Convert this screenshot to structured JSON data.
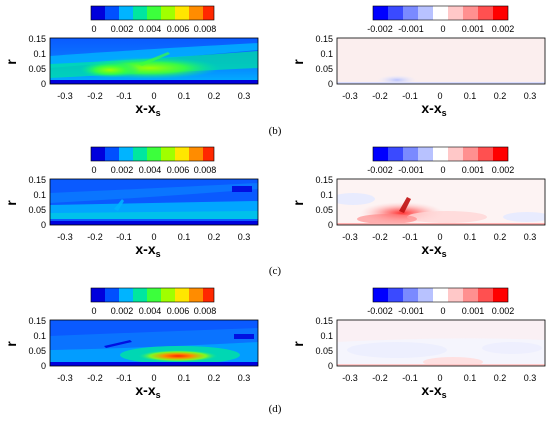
{
  "figure": {
    "rows": [
      {
        "caption": "(b)",
        "left": {
          "colorbar": {
            "ticks": [
              "0",
              "0.002",
              "0.004",
              "0.006",
              "0.008"
            ],
            "range": [
              0,
              0.0088
            ],
            "colors": [
              "#0000dc",
              "#0050ff",
              "#00b4ff",
              "#00e6a0",
              "#3cff3c",
              "#a0ff00",
              "#ffe600",
              "#ff8c00",
              "#ff2800"
            ]
          },
          "xlabel": "x-x",
          "xlabel_sub": "s",
          "ylabel": "r",
          "xticks": [
            "-0.3",
            "-0.2",
            "-0.1",
            "0",
            "0.1",
            "0.2",
            "0.3"
          ],
          "yticks": [
            "0",
            "0.05",
            "0.1",
            "0.15"
          ],
          "xlim": [
            -0.35,
            0.35
          ],
          "ylim": [
            0,
            0.15
          ]
        },
        "right": {
          "colorbar": {
            "ticks": [
              "-0.002",
              "-0.001",
              "0",
              "0.001",
              "0.002"
            ],
            "range": [
              -0.0025,
              0.0025
            ],
            "colors": [
              "#0000ff",
              "#3a4aff",
              "#7a8aff",
              "#b8c2ff",
              "#ffffff",
              "#ffc8c8",
              "#ff9090",
              "#ff5050",
              "#ff0000"
            ]
          },
          "xlabel": "x-x",
          "xlabel_sub": "s",
          "ylabel": "r",
          "xticks": [
            "-0.3",
            "-0.2",
            "-0.1",
            "0",
            "0.1",
            "0.2",
            "0.3"
          ],
          "yticks": [
            "0",
            "0.05",
            "0.1",
            "0.15"
          ],
          "xlim": [
            -0.35,
            0.35
          ],
          "ylim": [
            0,
            0.15
          ]
        }
      },
      {
        "caption": "(c)",
        "left": {
          "colorbar": {
            "ticks": [
              "0",
              "0.002",
              "0.004",
              "0.006",
              "0.008"
            ],
            "range": [
              0,
              0.0088
            ],
            "colors": [
              "#0000dc",
              "#0050ff",
              "#00b4ff",
              "#00e6a0",
              "#3cff3c",
              "#a0ff00",
              "#ffe600",
              "#ff8c00",
              "#ff2800"
            ]
          },
          "xlabel": "x-x",
          "xlabel_sub": "s",
          "ylabel": "r",
          "xticks": [
            "-0.3",
            "-0.2",
            "-0.1",
            "0",
            "0.1",
            "0.2",
            "0.3"
          ],
          "yticks": [
            "0",
            "0.05",
            "0.1",
            "0.15"
          ],
          "xlim": [
            -0.35,
            0.35
          ],
          "ylim": [
            0,
            0.15
          ]
        },
        "right": {
          "colorbar": {
            "ticks": [
              "-0.002",
              "-0.001",
              "0",
              "0.001",
              "0.002"
            ],
            "range": [
              -0.0025,
              0.0025
            ],
            "colors": [
              "#0000ff",
              "#3a4aff",
              "#7a8aff",
              "#b8c2ff",
              "#ffffff",
              "#ffc8c8",
              "#ff9090",
              "#ff5050",
              "#ff0000"
            ]
          },
          "xlabel": "x-x",
          "xlabel_sub": "s",
          "ylabel": "r",
          "xticks": [
            "-0.3",
            "-0.2",
            "-0.1",
            "0",
            "0.1",
            "0.2",
            "0.3"
          ],
          "yticks": [
            "0",
            "0.05",
            "0.1",
            "0.15"
          ],
          "xlim": [
            -0.35,
            0.35
          ],
          "ylim": [
            0,
            0.15
          ]
        }
      },
      {
        "caption": "(d)",
        "left": {
          "colorbar": {
            "ticks": [
              "0",
              "0.002",
              "0.004",
              "0.006",
              "0.008"
            ],
            "range": [
              0,
              0.0088
            ],
            "colors": [
              "#0000dc",
              "#0050ff",
              "#00b4ff",
              "#00e6a0",
              "#3cff3c",
              "#a0ff00",
              "#ffe600",
              "#ff8c00",
              "#ff2800"
            ]
          },
          "xlabel": "x-x",
          "xlabel_sub": "s",
          "ylabel": "r",
          "xticks": [
            "-0.3",
            "-0.2",
            "-0.1",
            "0",
            "0.1",
            "0.2",
            "0.3"
          ],
          "yticks": [
            "0",
            "0.05",
            "0.1",
            "0.15"
          ],
          "xlim": [
            -0.35,
            0.35
          ],
          "ylim": [
            0,
            0.15
          ]
        },
        "right": {
          "colorbar": {
            "ticks": [
              "-0.002",
              "-0.001",
              "0",
              "0.001",
              "0.002"
            ],
            "range": [
              -0.0025,
              0.0025
            ],
            "colors": [
              "#0000ff",
              "#3a4aff",
              "#7a8aff",
              "#b8c2ff",
              "#ffffff",
              "#ffc8c8",
              "#ff9090",
              "#ff5050",
              "#ff0000"
            ]
          },
          "xlabel": "x-x",
          "xlabel_sub": "s",
          "ylabel": "r",
          "xticks": [
            "-0.3",
            "-0.2",
            "-0.1",
            "0",
            "0.1",
            "0.2",
            "0.3"
          ],
          "yticks": [
            "0",
            "0.05",
            "0.1",
            "0.15"
          ],
          "xlim": [
            -0.35,
            0.35
          ],
          "ylim": [
            0,
            0.15
          ]
        }
      }
    ]
  },
  "chart_data": [
    {
      "type": "heatmap",
      "panel": "b-left",
      "x": [
        -0.35,
        0.35
      ],
      "y": [
        0,
        0.15
      ],
      "colorbar_range": [
        0,
        0.0088
      ]
    },
    {
      "type": "heatmap",
      "panel": "b-right",
      "x": [
        -0.35,
        0.35
      ],
      "y": [
        0,
        0.15
      ],
      "colorbar_range": [
        -0.0025,
        0.0025
      ]
    },
    {
      "type": "heatmap",
      "panel": "c-left",
      "x": [
        -0.35,
        0.35
      ],
      "y": [
        0,
        0.15
      ],
      "colorbar_range": [
        0,
        0.0088
      ]
    },
    {
      "type": "heatmap",
      "panel": "c-right",
      "x": [
        -0.35,
        0.35
      ],
      "y": [
        0,
        0.15
      ],
      "colorbar_range": [
        -0.0025,
        0.0025
      ]
    },
    {
      "type": "heatmap",
      "panel": "d-left",
      "x": [
        -0.35,
        0.35
      ],
      "y": [
        0,
        0.15
      ],
      "colorbar_range": [
        0,
        0.0088
      ]
    },
    {
      "type": "heatmap",
      "panel": "d-right",
      "x": [
        -0.35,
        0.35
      ],
      "y": [
        0,
        0.15
      ],
      "colorbar_range": [
        -0.0025,
        0.0025
      ]
    }
  ]
}
